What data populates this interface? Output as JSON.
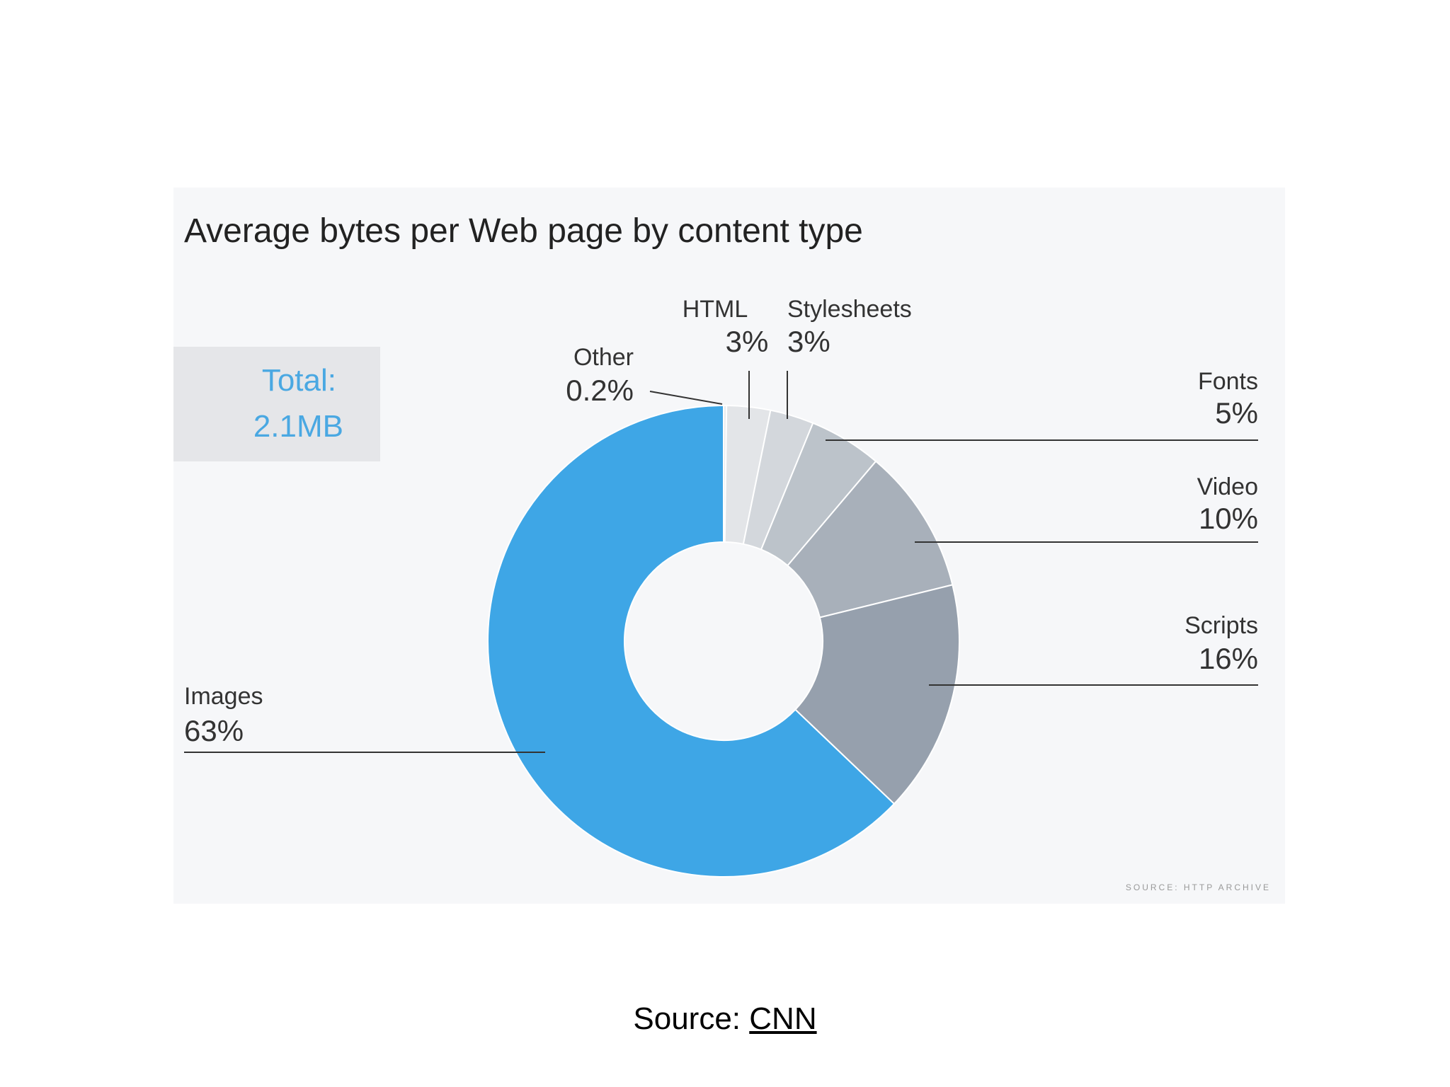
{
  "chart_data": {
    "type": "pie",
    "title": "Average bytes per Web page by content type",
    "total_box": {
      "label": "Total:",
      "value": "2.1MB"
    },
    "source_note": "SOURCE: HTTP ARCHIVE",
    "slices": [
      {
        "name": "Other",
        "label": "0.2%",
        "value": 0.2,
        "color": "#e9ebed"
      },
      {
        "name": "HTML",
        "label": "3%",
        "value": 3,
        "color": "#e3e5e8"
      },
      {
        "name": "Stylesheets",
        "label": "3%",
        "value": 3,
        "color": "#d3d7dc"
      },
      {
        "name": "Fonts",
        "label": "5%",
        "value": 5,
        "color": "#bcc3ca"
      },
      {
        "name": "Video",
        "label": "10%",
        "value": 10,
        "color": "#a8b0ba"
      },
      {
        "name": "Scripts",
        "label": "16%",
        "value": 16,
        "color": "#96a0ad"
      },
      {
        "name": "Images",
        "label": "63%",
        "value": 63,
        "color": "#3ea6e6"
      }
    ]
  },
  "caption": {
    "prefix": "Source: ",
    "link_text": "CNN"
  }
}
